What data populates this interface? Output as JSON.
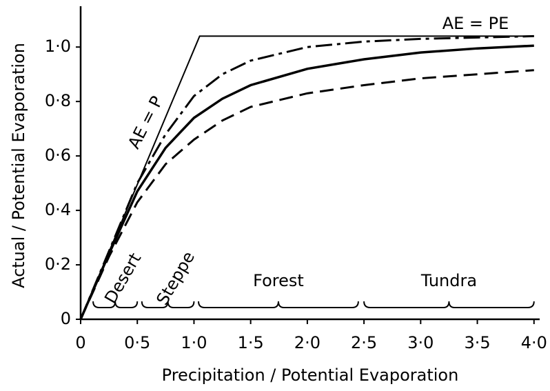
{
  "chart_data": {
    "type": "line",
    "x_label": "Precipitation / Potential Evaporation",
    "y_label": "Actual / Potential Evaporation",
    "xlim": [
      0,
      4.05
    ],
    "ylim": [
      0,
      1.15
    ],
    "xticks": [
      0,
      {
        "value": 0.5,
        "label": "0·5"
      },
      {
        "value": 1.0,
        "label": "1·0"
      },
      {
        "value": 1.5,
        "label": "1·5"
      },
      {
        "value": 2.0,
        "label": "2·0"
      },
      {
        "value": 2.5,
        "label": "2·5"
      },
      {
        "value": 3.0,
        "label": "3·0"
      },
      {
        "value": 3.5,
        "label": "3·5"
      },
      {
        "value": 4.0,
        "label": "4·0"
      }
    ],
    "yticks": [
      0,
      {
        "value": 0.2,
        "label": "0·2"
      },
      {
        "value": 0.4,
        "label": "0·4"
      },
      {
        "value": 0.6,
        "label": "0·6"
      },
      {
        "value": 0.8,
        "label": "0·8"
      },
      {
        "value": 1.0,
        "label": "1·0"
      }
    ],
    "x": [
      0,
      0.25,
      0.5,
      0.75,
      1.0,
      1.25,
      1.5,
      2.0,
      2.5,
      3.0,
      3.5,
      4.0
    ],
    "series": [
      {
        "color": "#000000",
        "style": "solid",
        "width": 2,
        "x": [
          0,
          1.05,
          4.0
        ],
        "values": [
          0,
          1.04,
          1.04
        ]
      },
      {
        "color": "#000000",
        "style": "dashdot",
        "width": 3,
        "values": [
          0,
          0.25,
          0.5,
          0.68,
          0.82,
          0.9,
          0.95,
          1.0,
          1.02,
          1.03,
          1.035,
          1.04
        ]
      },
      {
        "color": "#000000",
        "style": "solid",
        "width": 3.5,
        "values": [
          0,
          0.24,
          0.47,
          0.63,
          0.74,
          0.81,
          0.86,
          0.92,
          0.955,
          0.98,
          0.995,
          1.005
        ]
      },
      {
        "color": "#000000",
        "style": "dashed",
        "width": 3,
        "values": [
          0,
          0.23,
          0.43,
          0.57,
          0.66,
          0.73,
          0.78,
          0.83,
          0.86,
          0.885,
          0.9,
          0.915
        ]
      }
    ],
    "annotations": [
      "AE = PE",
      "AE = P"
    ],
    "zones": [
      {
        "label": "Desert",
        "range": [
          0.11,
          0.5
        ]
      },
      {
        "label": "Steppe",
        "range": [
          0.54,
          1.0
        ]
      },
      {
        "label": "Forest",
        "range": [
          1.04,
          2.45
        ]
      },
      {
        "label": "Tundra",
        "range": [
          2.5,
          4.0
        ]
      }
    ]
  }
}
